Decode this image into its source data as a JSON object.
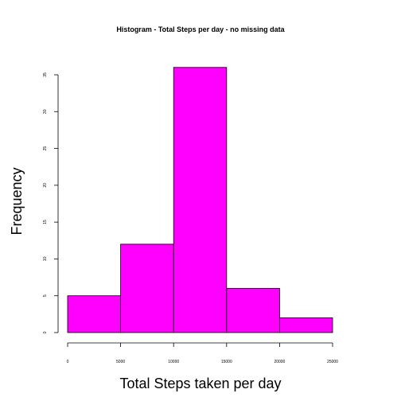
{
  "chart_data": {
    "type": "bar",
    "title": "Histogram - Total Steps per day - no missing data",
    "xlabel": "Total Steps taken per day",
    "ylabel": "Frequency",
    "bins": [
      {
        "from": 0,
        "to": 5000,
        "count": 5
      },
      {
        "from": 5000,
        "to": 10000,
        "count": 12
      },
      {
        "from": 10000,
        "to": 15000,
        "count": 36
      },
      {
        "from": 15000,
        "to": 20000,
        "count": 6
      },
      {
        "from": 20000,
        "to": 25000,
        "count": 2
      }
    ],
    "xlim": [
      0,
      25000
    ],
    "ylim": [
      0,
      35
    ],
    "x_ticks": [
      "0",
      "5000",
      "10000",
      "15000",
      "20000",
      "25000"
    ],
    "y_ticks": [
      "0",
      "5",
      "10",
      "15",
      "20",
      "25",
      "30",
      "35"
    ],
    "bar_color": "#ff00ff",
    "grid": false,
    "legend": "none"
  }
}
